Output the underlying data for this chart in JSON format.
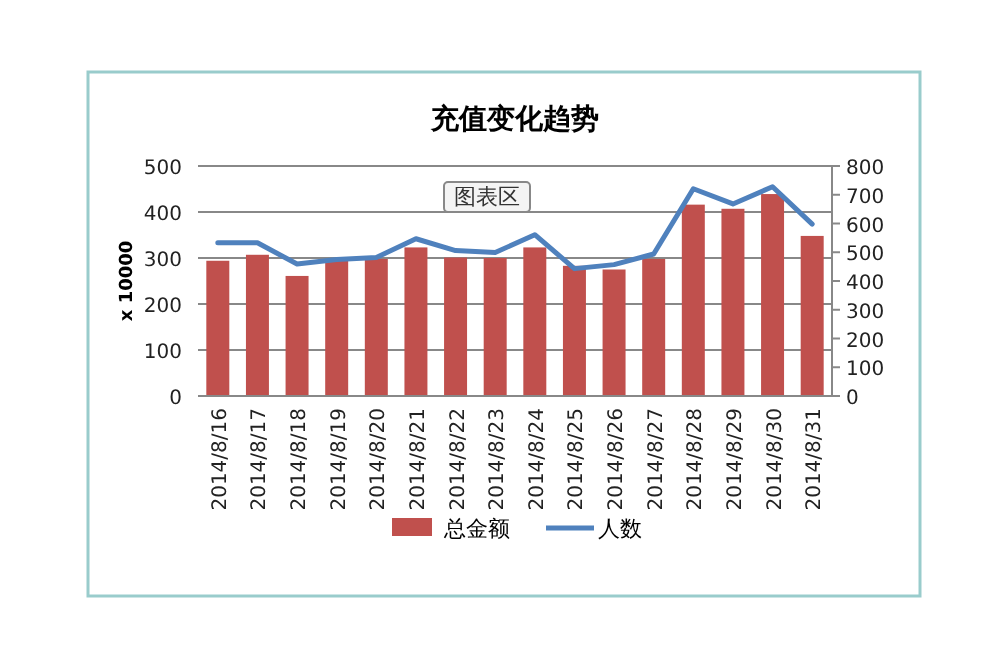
{
  "chart_data": {
    "type": "bar",
    "title": "充值变化趋势",
    "ylabel": "x 10000",
    "categories": [
      "2014/8/16",
      "2014/8/17",
      "2014/8/18",
      "2014/8/19",
      "2014/8/20",
      "2014/8/21",
      "2014/8/22",
      "2014/8/23",
      "2014/8/24",
      "2014/8/25",
      "2014/8/26",
      "2014/8/27",
      "2014/8/28",
      "2014/8/29",
      "2014/8/30",
      "2014/8/31"
    ],
    "series": [
      {
        "name": "总金额",
        "color": "#c0504d",
        "values": [
          294,
          307,
          261,
          297,
          298,
          323,
          301,
          300,
          323,
          283,
          275,
          298,
          416,
          407,
          439,
          348
        ]
      },
      {
        "name": "人数",
        "type": "line",
        "axis": "y2",
        "color": "#4f81bd",
        "values": [
          533,
          533,
          459,
          475,
          482,
          547,
          506,
          499,
          561,
          443,
          457,
          494,
          721,
          668,
          728,
          598
        ]
      }
    ],
    "ylim": [
      0,
      500
    ],
    "yticks": [
      0,
      100,
      200,
      300,
      400,
      500
    ],
    "y2lim": [
      0,
      800
    ],
    "y2ticks": [
      0,
      100,
      200,
      300,
      400,
      500,
      600,
      700,
      800
    ],
    "grid": "y",
    "legend": "bottom",
    "marker": "none",
    "annotations": [
      "图表区"
    ]
  }
}
